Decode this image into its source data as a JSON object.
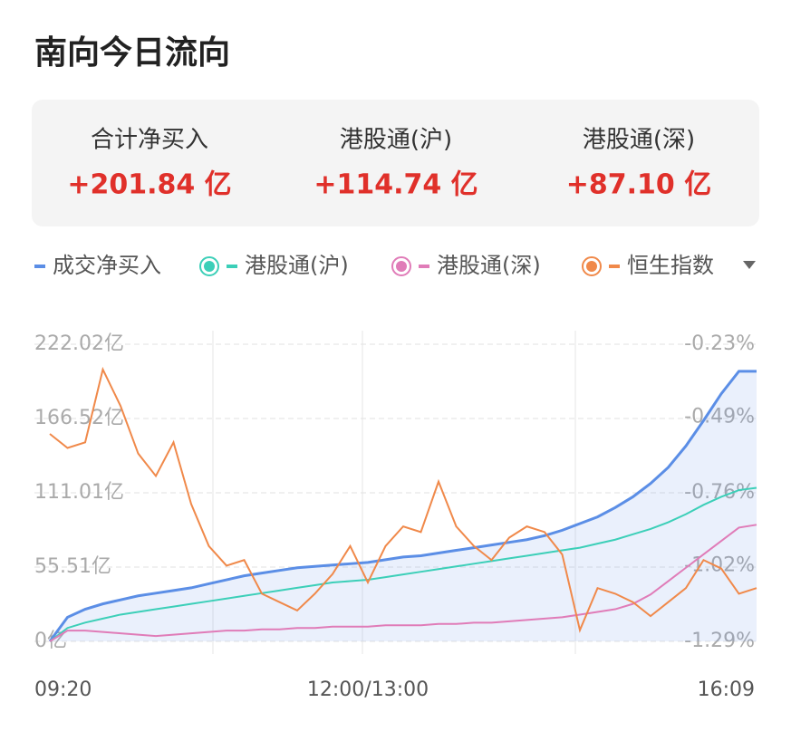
{
  "header": {
    "title": "南向今日流向"
  },
  "summary": [
    {
      "label": "合计净买入",
      "value": "+201.84 亿"
    },
    {
      "label": "港股通(沪)",
      "value": "+114.74 亿"
    },
    {
      "label": "港股通(深)",
      "value": "+87.10 亿"
    }
  ],
  "chart_data": {
    "type": "line",
    "categories": [
      "09:20",
      null,
      null,
      null,
      null,
      null,
      null,
      null,
      null,
      null,
      null,
      null,
      null,
      null,
      null,
      null,
      null,
      null,
      "12:00/13:00",
      null,
      null,
      null,
      null,
      null,
      null,
      null,
      null,
      null,
      null,
      null,
      null,
      null,
      null,
      null,
      null,
      null,
      null,
      null,
      null,
      null,
      "16:09"
    ],
    "series": [
      {
        "name": "成交净买入",
        "color": "#5b8ee6",
        "values": [
          0,
          18,
          24,
          28,
          31,
          34,
          36,
          38,
          40,
          43,
          46,
          49,
          51,
          53,
          55,
          56,
          57,
          58,
          59,
          61,
          63,
          64,
          66,
          68,
          70,
          72,
          74,
          76,
          79,
          83,
          88,
          93,
          100,
          108,
          118,
          130,
          146,
          165,
          185,
          201.84,
          201.84
        ]
      },
      {
        "name": "港股通(沪)",
        "color": "#3ccfb8",
        "values": [
          0,
          10,
          14,
          17,
          20,
          22,
          24,
          26,
          28,
          30,
          32,
          34,
          36,
          38,
          40,
          42,
          44,
          45,
          46,
          48,
          50,
          52,
          54,
          56,
          58,
          60,
          62,
          64,
          66,
          68,
          70,
          73,
          76,
          80,
          84,
          89,
          95,
          102,
          108,
          113,
          114.74
        ]
      },
      {
        "name": "港股通(深)",
        "color": "#e07cb8",
        "values": [
          0,
          8,
          8,
          7,
          6,
          5,
          4,
          5,
          6,
          7,
          8,
          8,
          9,
          9,
          10,
          10,
          11,
          11,
          11,
          12,
          12,
          12,
          13,
          13,
          14,
          14,
          15,
          16,
          17,
          18,
          20,
          22,
          24,
          28,
          35,
          45,
          55,
          65,
          75,
          85,
          87.1
        ]
      },
      {
        "name": "恒生指数",
        "color": "#f0894a",
        "axis": "y2",
        "values": [
          -0.55,
          -0.6,
          -0.58,
          -0.32,
          -0.45,
          -0.62,
          -0.7,
          -0.58,
          -0.8,
          -0.95,
          -1.02,
          -1.0,
          -1.12,
          -1.15,
          -1.18,
          -1.12,
          -1.05,
          -0.95,
          -1.08,
          -0.95,
          -0.88,
          -0.9,
          -0.72,
          -0.88,
          -0.95,
          -1.0,
          -0.92,
          -0.88,
          -0.9,
          -0.98,
          -1.25,
          -1.1,
          -1.12,
          -1.15,
          -1.2,
          -1.15,
          -1.1,
          -1.0,
          -1.03,
          -1.12,
          -1.1
        ]
      }
    ],
    "ylim": [
      0,
      222.02
    ],
    "yticks": [
      {
        "value": 0,
        "label": "0亿"
      },
      {
        "value": 55.51,
        "label": "55.51亿"
      },
      {
        "value": 111.01,
        "label": "111.01亿"
      },
      {
        "value": 166.52,
        "label": "166.52亿"
      },
      {
        "value": 222.02,
        "label": "222.02亿"
      }
    ],
    "y2lim": [
      -1.29,
      -0.23
    ],
    "y2ticks": [
      {
        "value": -1.29,
        "label": "-1.29%"
      },
      {
        "value": -1.02,
        "label": "-1.02%"
      },
      {
        "value": -0.76,
        "label": "-0.76%"
      },
      {
        "value": -0.49,
        "label": "-0.49%"
      },
      {
        "value": -0.23,
        "label": "-0.23%"
      }
    ],
    "grid": true
  }
}
